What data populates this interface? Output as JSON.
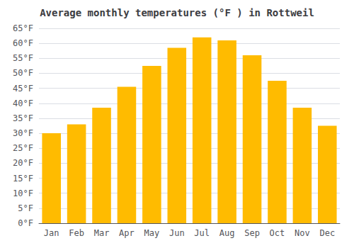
{
  "chart_data": {
    "type": "bar",
    "title": "Average monthly temperatures (°F ) in Rottweil",
    "categories": [
      "Jan",
      "Feb",
      "Mar",
      "Apr",
      "May",
      "Jun",
      "Jul",
      "Aug",
      "Sep",
      "Oct",
      "Nov",
      "Dec"
    ],
    "values": [
      30,
      33,
      38.5,
      45.5,
      52.5,
      58.5,
      62,
      61,
      56,
      47.5,
      38.5,
      32.5
    ],
    "color": "#FFBB00",
    "ylim": [
      0,
      65
    ],
    "yticks": [
      {
        "value": 0,
        "label": "0°F"
      },
      {
        "value": 5,
        "label": "5°F"
      },
      {
        "value": 10,
        "label": "10°F"
      },
      {
        "value": 15,
        "label": "15°F"
      },
      {
        "value": 20,
        "label": "20°F"
      },
      {
        "value": 25,
        "label": "25°F"
      },
      {
        "value": 30,
        "label": "30°F"
      },
      {
        "value": 35,
        "label": "35°F"
      },
      {
        "value": 40,
        "label": "40°F"
      },
      {
        "value": 45,
        "label": "45°F"
      },
      {
        "value": 50,
        "label": "50°F"
      },
      {
        "value": 55,
        "label": "55°F"
      },
      {
        "value": 60,
        "label": "60°F"
      },
      {
        "value": 65,
        "label": "65°F"
      }
    ],
    "grid": true
  }
}
